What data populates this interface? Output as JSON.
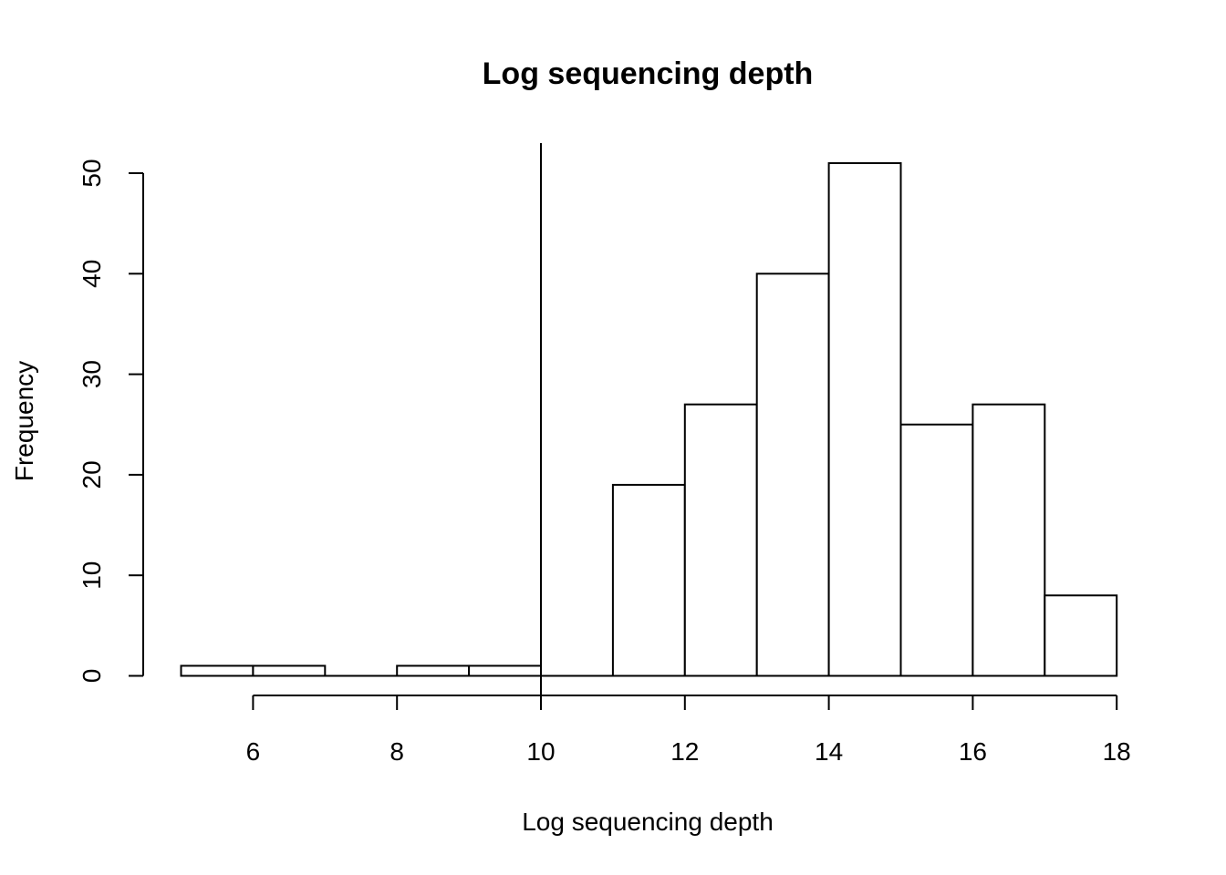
{
  "chart_data": {
    "type": "bar",
    "title": "Log sequencing depth",
    "xlabel": "Log sequencing depth",
    "ylabel": "Frequency",
    "bins": [
      {
        "x0": 5,
        "x1": 6,
        "value": 1
      },
      {
        "x0": 6,
        "x1": 7,
        "value": 1
      },
      {
        "x0": 7,
        "x1": 8,
        "value": 0
      },
      {
        "x0": 8,
        "x1": 9,
        "value": 1
      },
      {
        "x0": 9,
        "x1": 10,
        "value": 1
      },
      {
        "x0": 10,
        "x1": 11,
        "value": 0
      },
      {
        "x0": 11,
        "x1": 12,
        "value": 19
      },
      {
        "x0": 12,
        "x1": 13,
        "value": 27
      },
      {
        "x0": 13,
        "x1": 14,
        "value": 40
      },
      {
        "x0": 14,
        "x1": 15,
        "value": 51
      },
      {
        "x0": 15,
        "x1": 16,
        "value": 25
      },
      {
        "x0": 16,
        "x1": 17,
        "value": 27
      },
      {
        "x0": 17,
        "x1": 18,
        "value": 8
      }
    ],
    "xlim": [
      5,
      18
    ],
    "ylim": [
      0,
      53
    ],
    "x_ticks": [
      6,
      8,
      10,
      12,
      14,
      16,
      18
    ],
    "y_ticks": [
      0,
      10,
      20,
      30,
      40,
      50
    ],
    "vline_x": 10,
    "grid": false
  }
}
